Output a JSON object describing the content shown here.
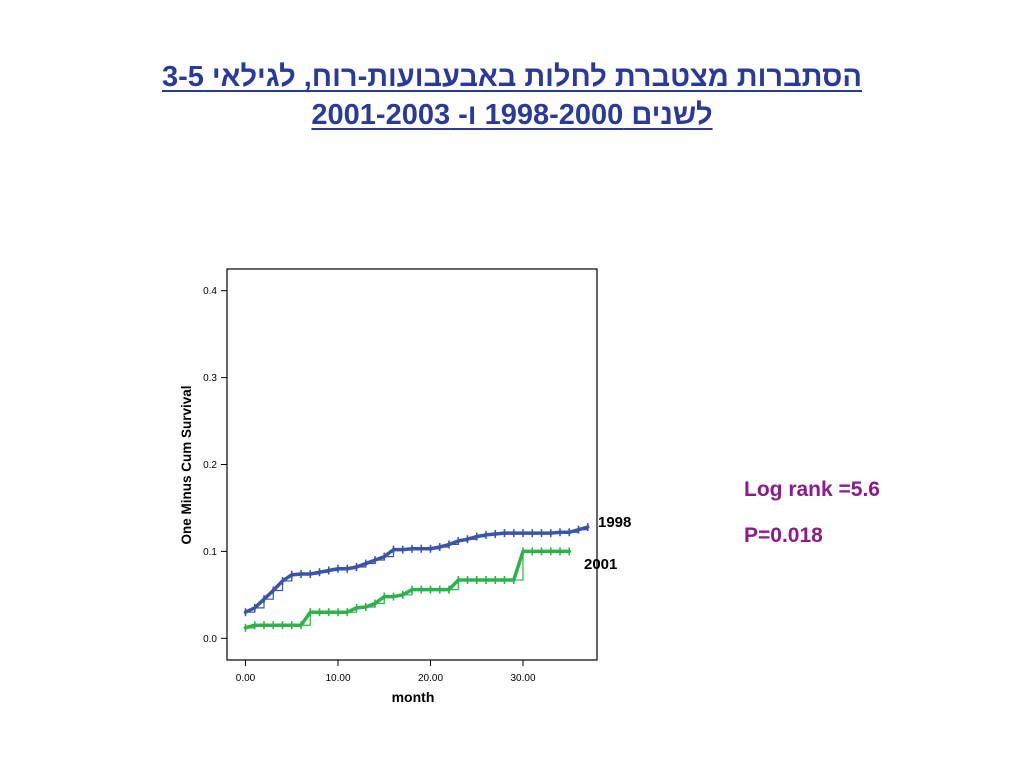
{
  "title": {
    "line1": "הסתברות מצטברת לחלות באבעבועות-רוח, לגילאי 3-5",
    "line2": "לשנים 1998-2000 ו- 2001-2003 "
  },
  "stats": {
    "log_rank": "Log rank =5.6",
    "p_value": "P=0.018"
  },
  "colors": {
    "title": "#2a3a9a",
    "stats": "#8b1a8b",
    "series_1998": "#3a55a8",
    "series_2001": "#2db34a"
  },
  "chart_data": {
    "type": "line",
    "xlabel": "month",
    "ylabel": "One Minus Cum Survival",
    "xlim": [
      -2,
      38
    ],
    "ylim": [
      -0.025,
      0.425
    ],
    "xticks": [
      0,
      10,
      20,
      30
    ],
    "xtick_labels": [
      "0.00",
      "10.00",
      "20.00",
      "30.00"
    ],
    "yticks": [
      0.0,
      0.1,
      0.2,
      0.3,
      0.4
    ],
    "ytick_labels": [
      "0.0",
      "0.1",
      "0.2",
      "0.3",
      "0.4"
    ],
    "grid": false,
    "series": [
      {
        "name": "1998",
        "color": "#3a55a8",
        "x": [
          0,
          1,
          2,
          3,
          4,
          5,
          6,
          7,
          8,
          9,
          10,
          11,
          12,
          13,
          14,
          15,
          16,
          17,
          18,
          19,
          20,
          21,
          22,
          23,
          24,
          25,
          26,
          27,
          28,
          29,
          30,
          31,
          32,
          33,
          34,
          35,
          36,
          37
        ],
        "y": [
          0.03,
          0.035,
          0.045,
          0.055,
          0.066,
          0.073,
          0.074,
          0.074,
          0.076,
          0.078,
          0.08,
          0.08,
          0.082,
          0.086,
          0.09,
          0.094,
          0.102,
          0.102,
          0.103,
          0.103,
          0.103,
          0.105,
          0.108,
          0.112,
          0.114,
          0.117,
          0.119,
          0.12,
          0.121,
          0.121,
          0.121,
          0.121,
          0.121,
          0.121,
          0.122,
          0.122,
          0.125,
          0.128
        ]
      },
      {
        "name": "2001",
        "color": "#2db34a",
        "x": [
          0,
          1,
          2,
          3,
          4,
          5,
          6,
          7,
          8,
          9,
          10,
          11,
          12,
          13,
          14,
          15,
          16,
          17,
          18,
          19,
          20,
          21,
          22,
          23,
          24,
          25,
          26,
          27,
          28,
          29,
          30,
          31,
          32,
          33,
          34,
          35
        ],
        "y": [
          0.012,
          0.015,
          0.015,
          0.015,
          0.015,
          0.015,
          0.015,
          0.03,
          0.03,
          0.03,
          0.03,
          0.03,
          0.035,
          0.036,
          0.04,
          0.048,
          0.048,
          0.05,
          0.056,
          0.056,
          0.056,
          0.056,
          0.056,
          0.067,
          0.067,
          0.067,
          0.067,
          0.067,
          0.067,
          0.067,
          0.1,
          0.1,
          0.1,
          0.1,
          0.1,
          0.1
        ]
      }
    ]
  }
}
